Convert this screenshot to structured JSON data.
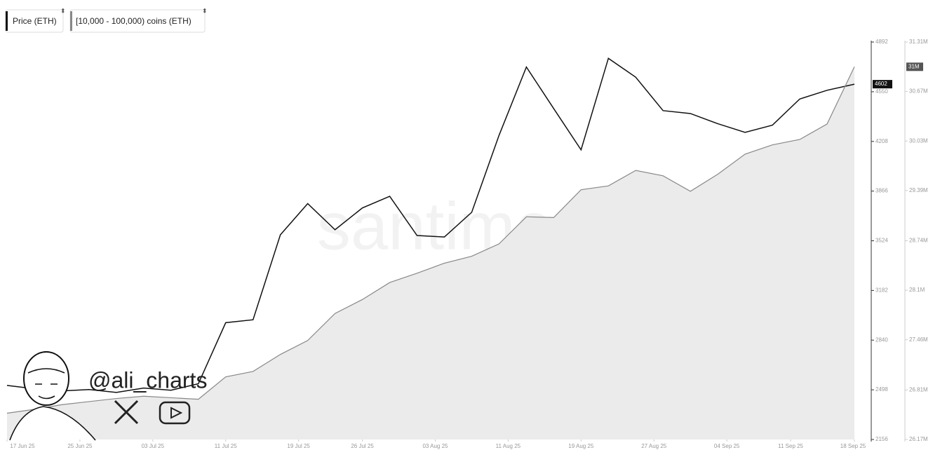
{
  "chart_data": {
    "type": "line",
    "watermark": "santiment",
    "handle": "@ali_charts",
    "x": [
      "2025-06-17",
      "2025-06-20",
      "2025-06-23",
      "2025-06-26",
      "2025-06-29",
      "2025-07-02",
      "2025-07-05",
      "2025-07-08",
      "2025-07-11",
      "2025-07-14",
      "2025-07-17",
      "2025-07-20",
      "2025-07-23",
      "2025-07-26",
      "2025-07-29",
      "2025-08-01",
      "2025-08-04",
      "2025-08-07",
      "2025-08-10",
      "2025-08-13",
      "2025-08-16",
      "2025-08-19",
      "2025-08-22",
      "2025-08-25",
      "2025-08-28",
      "2025-08-31",
      "2025-09-03",
      "2025-09-06",
      "2025-09-09",
      "2025-09-12",
      "2025-09-15",
      "2025-09-18"
    ],
    "xlim": [
      "2025-06-17",
      "2025-09-18"
    ],
    "xticks": [
      {
        "value": "2025-06-17",
        "label": "17 Jun 25"
      },
      {
        "value": "2025-06-25",
        "label": "25 Jun 25"
      },
      {
        "value": "2025-07-03",
        "label": "03 Jul 25"
      },
      {
        "value": "2025-07-11",
        "label": "11 Jul 25"
      },
      {
        "value": "2025-07-19",
        "label": "19 Jul 25"
      },
      {
        "value": "2025-07-26",
        "label": "26 Jul 25"
      },
      {
        "value": "2025-08-03",
        "label": "03 Aug 25"
      },
      {
        "value": "2025-08-11",
        "label": "11 Aug 25"
      },
      {
        "value": "2025-08-19",
        "label": "19 Aug 25"
      },
      {
        "value": "2025-08-27",
        "label": "27 Aug 25"
      },
      {
        "value": "2025-09-04",
        "label": "04 Sep 25"
      },
      {
        "value": "2025-09-11",
        "label": "11 Sep 25"
      },
      {
        "value": "2025-09-18",
        "label": "18 Sep 25"
      }
    ],
    "ylim": [
      2156,
      4892
    ],
    "yticks": [
      2156,
      2498,
      2840,
      3182,
      3524,
      3866,
      4208,
      4550,
      4892
    ],
    "y2lim": [
      26170000,
      31310000
    ],
    "y2ticks": [
      {
        "value": 26170000,
        "label": "26.17M"
      },
      {
        "value": 26810000,
        "label": "26.81M"
      },
      {
        "value": 27460000,
        "label": "27.46M"
      },
      {
        "value": 28100000,
        "label": "28.1M"
      },
      {
        "value": 28740000,
        "label": "28.74M"
      },
      {
        "value": 29390000,
        "label": "29.39M"
      },
      {
        "value": 30030000,
        "label": "30.03M"
      },
      {
        "value": 30670000,
        "label": "30.67M"
      },
      {
        "value": 31310000,
        "label": "31.31M"
      }
    ],
    "series": [
      {
        "name": "Price (ETH)",
        "color": "#111111",
        "values": [
          2528,
          2505,
          2490,
          2500,
          2480,
          2510,
          2495,
          2540,
          2960,
          2980,
          3565,
          3780,
          3600,
          3750,
          3830,
          3560,
          3550,
          3720,
          4250,
          4720,
          4434,
          4150,
          4780,
          4650,
          4420,
          4400,
          4330,
          4270,
          4320,
          4500,
          4560,
          4602
        ]
      },
      {
        "name": "[10,000 - 100,000) coins (ETH)",
        "color": "#888888",
        "fill": "#ebebeb",
        "axis": "y2",
        "last_value_label": "31M",
        "values": [
          26510000,
          26560000,
          26620000,
          26660000,
          26700000,
          26730000,
          26710000,
          26690000,
          26980000,
          27050000,
          27270000,
          27450000,
          27800000,
          27980000,
          28200000,
          28320000,
          28450000,
          28540000,
          28700000,
          29050000,
          29040000,
          29400000,
          29450000,
          29650000,
          29580000,
          29380000,
          29600000,
          29860000,
          29980000,
          30050000,
          30250000,
          30990000
        ]
      }
    ]
  }
}
